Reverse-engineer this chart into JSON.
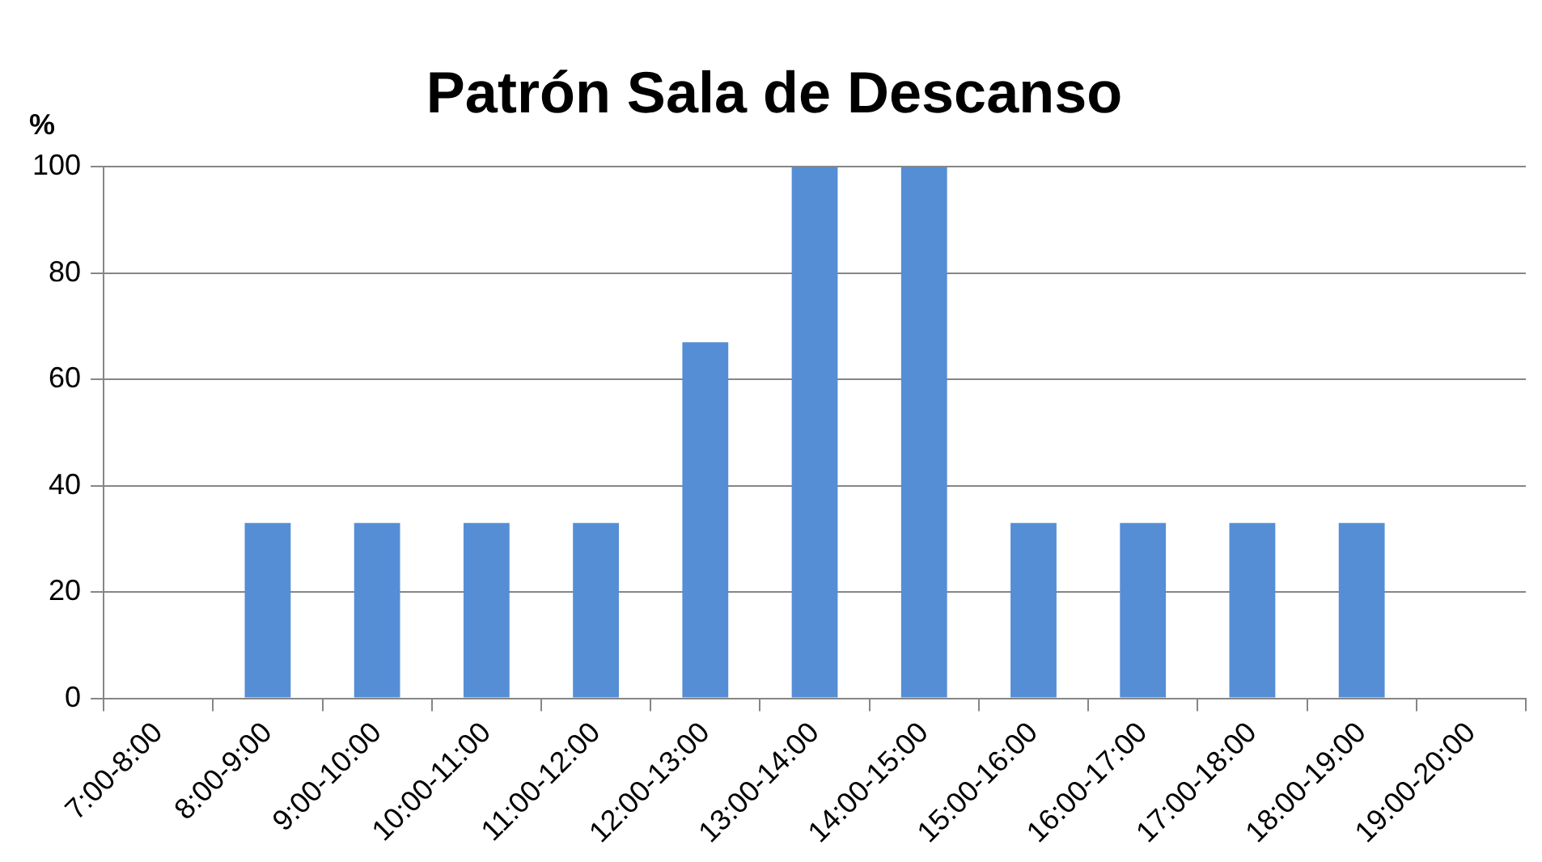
{
  "chart_data": {
    "type": "bar",
    "title": "Patrón Sala de Descanso",
    "ylabel": "%",
    "categories": [
      "7:00-8:00",
      "8:00-9:00",
      "9:00-10:00",
      "10:00-11:00",
      "11:00-12:00",
      "12:00-13:00",
      "13:00-14:00",
      "14:00-15:00",
      "15:00-16:00",
      "16:00-17:00",
      "17:00-18:00",
      "18:00-19:00",
      "19:00-20:00"
    ],
    "values": [
      0,
      33,
      33,
      33,
      33,
      67,
      100,
      100,
      33,
      33,
      33,
      33,
      0
    ],
    "color": "#558ed5",
    "ylim": [
      0,
      100
    ],
    "yticks": [
      0,
      20,
      40,
      60,
      80,
      100
    ],
    "grid": "y",
    "legend": false
  }
}
